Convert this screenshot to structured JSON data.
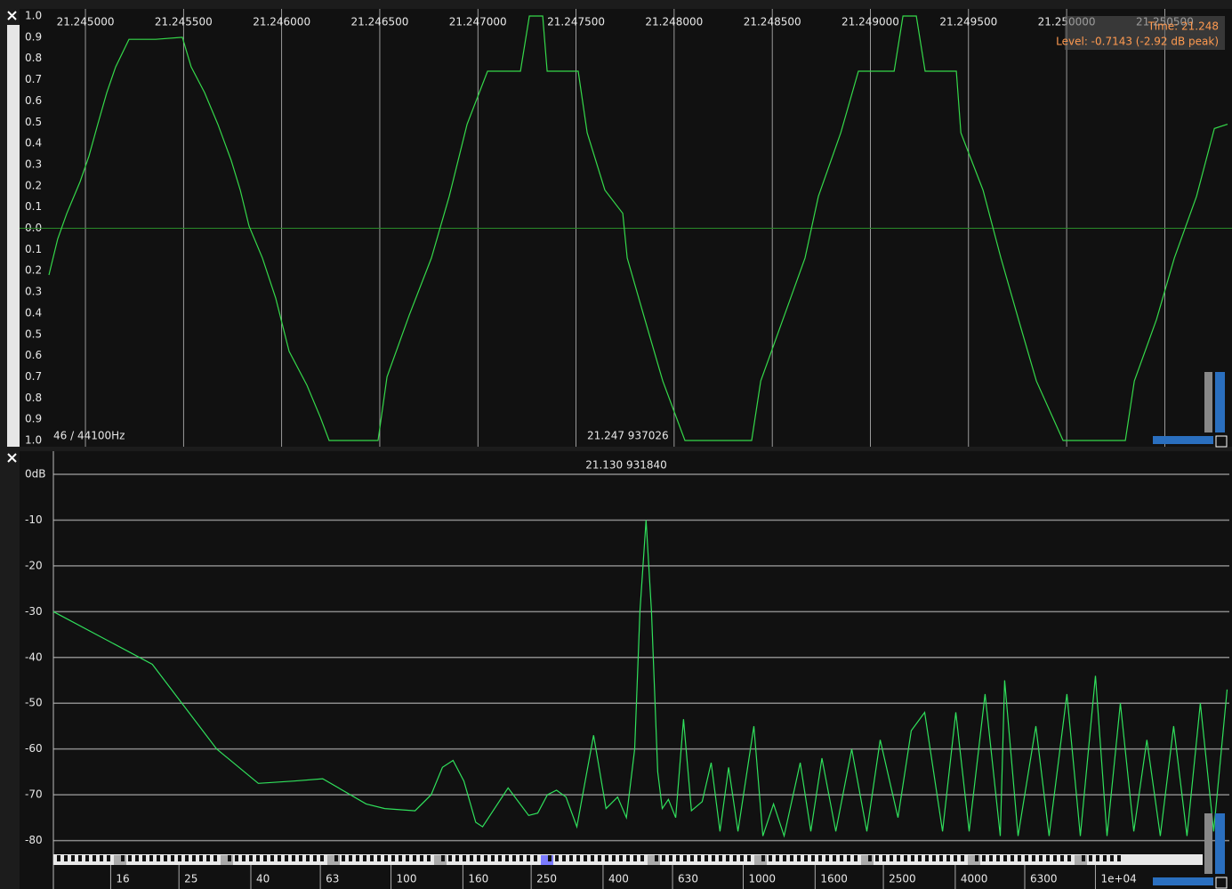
{
  "chart_data": [
    {
      "type": "line",
      "x": [
        21.244814,
        21.244859,
        21.244905,
        21.244973,
        21.245018,
        21.245063,
        21.245109,
        21.245154,
        21.245222,
        21.245358,
        21.245494,
        21.245539,
        21.245607,
        21.245675,
        21.245743,
        21.245789,
        21.245834,
        21.245902,
        21.24597,
        21.246038,
        21.246129,
        21.246197,
        21.246242,
        21.246491,
        21.246537,
        21.24665,
        21.246763,
        21.246854,
        21.246945,
        21.247049,
        21.247217,
        21.247262,
        21.24733,
        21.247353,
        21.247511,
        21.247557,
        21.247647,
        21.247738,
        21.247761,
        21.247851,
        21.247942,
        21.248055,
        21.248395,
        21.248441,
        21.248554,
        21.248667,
        21.248735,
        21.248849,
        21.248939,
        21.249121,
        21.249166,
        21.249234,
        21.249279,
        21.249438,
        21.249461,
        21.249574,
        21.249665,
        21.249755,
        21.249846,
        21.249982,
        21.250299,
        21.250345,
        21.250458,
        21.250549,
        21.250662,
        21.250753,
        21.25082
      ],
      "series": [
        {
          "color": "#35d84a",
          "values": [
            -0.22,
            -0.05,
            0.07,
            0.22,
            0.34,
            0.49,
            0.64,
            0.76,
            0.89,
            0.89,
            0.9,
            0.76,
            0.64,
            0.49,
            0.32,
            0.18,
            0.01,
            -0.14,
            -0.33,
            -0.58,
            -0.74,
            -0.89,
            -1.0,
            -1.0,
            -0.7,
            -0.41,
            -0.14,
            0.15,
            0.49,
            0.74,
            0.74,
            1.0,
            1.0,
            0.74,
            0.74,
            0.45,
            0.18,
            0.07,
            -0.14,
            -0.43,
            -0.72,
            -1.0,
            -1.0,
            -0.72,
            -0.43,
            -0.14,
            0.15,
            0.45,
            0.74,
            0.74,
            1.0,
            1.0,
            0.74,
            0.74,
            0.45,
            0.18,
            -0.14,
            -0.43,
            -0.72,
            -1.0,
            -1.0,
            -0.72,
            -0.43,
            -0.14,
            0.15,
            0.47,
            0.49
          ]
        }
      ],
      "xlim": [
        21.244814,
        21.25082
      ],
      "xticks": [
        {
          "value": 21.245,
          "label": "21.245000"
        },
        {
          "value": 21.2455,
          "label": "21.245500"
        },
        {
          "value": 21.246,
          "label": "21.246000"
        },
        {
          "value": 21.2465,
          "label": "21.246500"
        },
        {
          "value": 21.247,
          "label": "21.247000"
        },
        {
          "value": 21.2475,
          "label": "21.247500"
        },
        {
          "value": 21.248,
          "label": "21.248000"
        },
        {
          "value": 21.2485,
          "label": "21.248500"
        },
        {
          "value": 21.249,
          "label": "21.249000"
        },
        {
          "value": 21.2495,
          "label": "21.249500"
        },
        {
          "value": 21.25,
          "label": "21.250000"
        },
        {
          "value": 21.2505,
          "label": "21.250500"
        }
      ],
      "ylim": [
        -1.0,
        1.0
      ],
      "yticks": [
        {
          "value": 1.0,
          "label": "1.0"
        },
        0.9,
        0.8,
        0.7,
        0.6,
        0.5,
        0.4,
        0.3,
        0.2,
        0.1,
        {
          "value": 0,
          "label": "0.0"
        },
        {
          "value": -0.1,
          "label": "0.1"
        },
        {
          "value": -0.2,
          "label": "0.2"
        },
        {
          "value": -0.3,
          "label": "0.3"
        },
        {
          "value": -0.4,
          "label": "0.4"
        },
        {
          "value": -0.5,
          "label": "0.5"
        },
        {
          "value": -0.6,
          "label": "0.6"
        },
        {
          "value": -0.7,
          "label": "0.7"
        },
        {
          "value": -0.8,
          "label": "0.8"
        },
        {
          "value": -0.9,
          "label": "0.9"
        },
        {
          "value": -1.0,
          "label": "1.0"
        }
      ],
      "grid": true,
      "annotations": [
        "46 / 44100Hz",
        "21.247  937026",
        "Time: 21.248",
        "Level: -0.7143 (-2.92 dB peak)"
      ]
    },
    {
      "type": "line",
      "log_x": true,
      "x": [
        11,
        21,
        32,
        42,
        53,
        64,
        85,
        96,
        117,
        130,
        140,
        150,
        161,
        174,
        182,
        215,
        246,
        261,
        278,
        295,
        314,
        337,
        376,
        408,
        440,
        466,
        492,
        509,
        530,
        549,
        572,
        589,
        613,
        643,
        677,
        713,
        765,
        811,
        859,
        909,
        966,
        1072,
        1137,
        1219,
        1307,
        1452,
        1556,
        1673,
        1832,
        2033,
        2244,
        2448,
        2750,
        3000,
        3274,
        3680,
        4015,
        4380,
        4860,
        5370,
        5525,
        6030,
        6775,
        7390,
        8300,
        9060,
        10000,
        10790,
        11770,
        12850,
        14000,
        15280,
        16680,
        18200,
        19860,
        21670,
        23650
      ],
      "series": [
        {
          "color": "#30e05c",
          "values": [
            -30,
            -41.5,
            -60,
            -67.5,
            -67,
            -66.5,
            -72,
            -73,
            -73.5,
            -70,
            -64,
            -62.5,
            -67,
            -76,
            -77,
            -68.5,
            -74.5,
            -74,
            -70,
            -69,
            -70.5,
            -77,
            -57,
            -73,
            -70.5,
            -75,
            -60,
            -30,
            -10,
            -30,
            -65,
            -73,
            -71,
            -75,
            -53.5,
            -73.5,
            -71.5,
            -63,
            -78,
            -64,
            -78,
            -55,
            -79,
            -72,
            -79,
            -63,
            -78,
            -62,
            -78,
            -60,
            -78,
            -58,
            -75,
            -56,
            -52,
            -78,
            -52,
            -78,
            -48,
            -79,
            -45,
            -79,
            -55,
            -79,
            -48,
            -79,
            -44,
            -79,
            -50,
            -78,
            -58,
            -79,
            -55,
            -79,
            -50,
            -78,
            -47
          ]
        }
      ],
      "xlim": [
        11,
        24000
      ],
      "xticks": [
        16,
        25,
        40,
        63,
        100,
        160,
        250,
        400,
        630,
        1000,
        1600,
        2500,
        4000,
        6300,
        {
          "value": 10000,
          "label": "1e+04"
        }
      ],
      "ylim": [
        -83,
        0
      ],
      "yticks": [
        {
          "value": 0,
          "label": "0dB"
        },
        -10,
        -20,
        -30,
        -40,
        -50,
        -60,
        -70,
        -80
      ],
      "grid": true,
      "annotations": [
        "21.130  931840"
      ]
    }
  ]
}
